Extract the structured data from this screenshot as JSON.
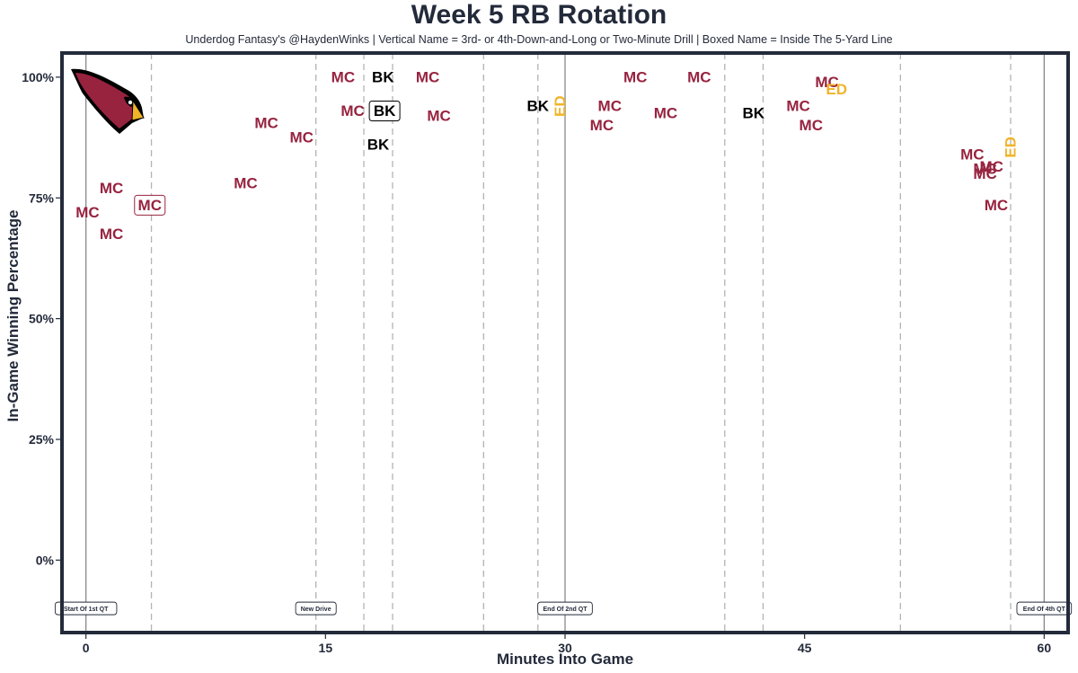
{
  "header": {
    "title": "Week 5 RB Rotation",
    "subtitle": "Underdog Fantasy's @HaydenWinks | Vertical Name = 3rd- or 4th-Down-and-Long or Two-Minute Drill | Boxed Name = Inside The 5-Yard Line"
  },
  "chart_data": {
    "type": "scatter",
    "xlabel": "Minutes Into Game",
    "ylabel": "In-Game Winning Percentage",
    "xlim": [
      -1.5,
      61.5
    ],
    "ylim": [
      -15,
      105
    ],
    "x_ticks": [
      0,
      15,
      30,
      45,
      60
    ],
    "x_tick_labels": [
      "0",
      "15",
      "30",
      "45",
      "60"
    ],
    "y_ticks": [
      0,
      25,
      50,
      75,
      100
    ],
    "y_tick_labels": [
      "0%",
      "25%",
      "50%",
      "75%",
      "100%"
    ],
    "grid": false,
    "logo": "arizona-cardinals-logo",
    "colors": {
      "MC": "#97233f",
      "BK": "#000000",
      "ED": "#f0b429",
      "frame": "#232a3a",
      "solid_line": "#888888",
      "dashed_line": "#b3b3b3"
    },
    "quarter_lines": [
      0,
      30,
      60
    ],
    "drive_lines": [
      4.1,
      14.4,
      17.4,
      19.2,
      24.9,
      28.3,
      40.0,
      42.4,
      51.0,
      57.9
    ],
    "markers": [
      {
        "x": 0,
        "label": "Start Of 1st QT"
      },
      {
        "x": 14.4,
        "label": "New Drive"
      },
      {
        "x": 30,
        "label": "End Of 2nd QT"
      },
      {
        "x": 60,
        "label": "End Of 4th QT"
      }
    ],
    "points": [
      {
        "x": 0.1,
        "y": 72,
        "label": "MC",
        "style": "normal"
      },
      {
        "x": 1.6,
        "y": 77,
        "label": "MC",
        "style": "normal"
      },
      {
        "x": 1.6,
        "y": 67.5,
        "label": "MC",
        "style": "normal"
      },
      {
        "x": 4.0,
        "y": 73.5,
        "label": "MC",
        "style": "boxed"
      },
      {
        "x": 10.0,
        "y": 78,
        "label": "MC",
        "style": "normal"
      },
      {
        "x": 11.3,
        "y": 90.5,
        "label": "MC",
        "style": "normal"
      },
      {
        "x": 13.5,
        "y": 87.5,
        "label": "MC",
        "style": "normal"
      },
      {
        "x": 16.1,
        "y": 100,
        "label": "MC",
        "style": "normal"
      },
      {
        "x": 16.7,
        "y": 93,
        "label": "MC",
        "style": "normal"
      },
      {
        "x": 18.6,
        "y": 100,
        "label": "BK",
        "style": "normal"
      },
      {
        "x": 18.7,
        "y": 93,
        "label": "BK",
        "style": "boxed"
      },
      {
        "x": 18.3,
        "y": 86,
        "label": "BK",
        "style": "normal"
      },
      {
        "x": 21.4,
        "y": 100,
        "label": "MC",
        "style": "normal"
      },
      {
        "x": 22.1,
        "y": 92,
        "label": "MC",
        "style": "normal"
      },
      {
        "x": 28.3,
        "y": 94,
        "label": "BK",
        "style": "normal"
      },
      {
        "x": 29.7,
        "y": 94,
        "label": "ED",
        "style": "vertical"
      },
      {
        "x": 32.3,
        "y": 90,
        "label": "MC",
        "style": "normal"
      },
      {
        "x": 32.8,
        "y": 94,
        "label": "MC",
        "style": "normal"
      },
      {
        "x": 34.4,
        "y": 100,
        "label": "MC",
        "style": "normal"
      },
      {
        "x": 36.3,
        "y": 92.5,
        "label": "MC",
        "style": "normal"
      },
      {
        "x": 38.4,
        "y": 100,
        "label": "MC",
        "style": "normal"
      },
      {
        "x": 41.8,
        "y": 92.5,
        "label": "BK",
        "style": "normal"
      },
      {
        "x": 44.6,
        "y": 94,
        "label": "MC",
        "style": "normal"
      },
      {
        "x": 45.4,
        "y": 90,
        "label": "MC",
        "style": "normal"
      },
      {
        "x": 46.4,
        "y": 99,
        "label": "MC",
        "style": "normal"
      },
      {
        "x": 47.0,
        "y": 97.5,
        "label": "ED",
        "style": "normal"
      },
      {
        "x": 55.5,
        "y": 84,
        "label": "MC",
        "style": "normal"
      },
      {
        "x": 56.3,
        "y": 81,
        "label": "MC",
        "style": "normal"
      },
      {
        "x": 56.7,
        "y": 81.5,
        "label": "MC",
        "style": "normal"
      },
      {
        "x": 56.3,
        "y": 80,
        "label": "MC",
        "style": "normal"
      },
      {
        "x": 57.9,
        "y": 85.5,
        "label": "ED",
        "style": "vertical"
      },
      {
        "x": 57.0,
        "y": 73.5,
        "label": "MC",
        "style": "normal"
      }
    ]
  }
}
